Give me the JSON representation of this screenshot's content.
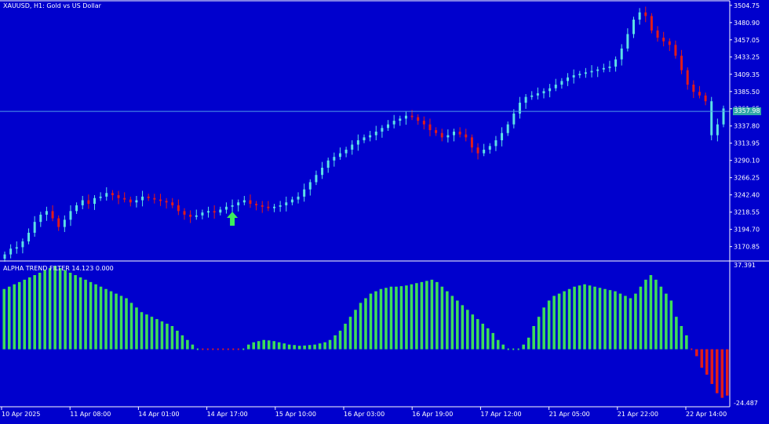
{
  "window": {
    "title": "XAUUSD, H1:  Gold vs US Dollar",
    "current_price": "3357.98"
  },
  "indicator": {
    "title": "ALPHA TREND FILTER 14.123 0.000",
    "max_label": "37.391",
    "min_label": "-24.487"
  },
  "colors": {
    "background": "#0000CD",
    "up_candle": "#5CE0E6",
    "down_candle": "#E01B1B",
    "positive_bar": "#3CDD5A",
    "negative_bar": "#E01B1B",
    "arrow": "#3CF05A",
    "price_line": "#4F9BE8"
  },
  "signal": {
    "type": "buy-arrow",
    "icon": "green-up-arrow-icon",
    "time_index": 38
  },
  "chart_data": [
    {
      "type": "candlestick",
      "title": "XAUUSD, H1:  Gold vs US Dollar",
      "ylim": [
        3152,
        3510
      ],
      "yticks": [
        "3504.75",
        "3480.90",
        "3457.05",
        "3433.25",
        "3409.35",
        "3385.50",
        "3361.65",
        "3337.80",
        "3313.95",
        "3290.10",
        "3266.25",
        "3242.40",
        "3218.55",
        "3194.70",
        "3170.85"
      ],
      "xticks": [
        "10 Apr 2025",
        "11 Apr 08:00",
        "14 Apr 01:00",
        "14 Apr 17:00",
        "15 Apr 10:00",
        "16 Apr 03:00",
        "16 Apr 19:00",
        "17 Apr 12:00",
        "21 Apr 05:00",
        "21 Apr 22:00",
        "22 Apr 14:00"
      ],
      "current_price": 3357.98,
      "close": [
        3160,
        3168,
        3170,
        3178,
        3190,
        3205,
        3215,
        3220,
        3210,
        3198,
        3208,
        3220,
        3228,
        3235,
        3230,
        3238,
        3240,
        3245,
        3242,
        3238,
        3236,
        3232,
        3235,
        3240,
        3238,
        3236,
        3234,
        3232,
        3228,
        3220,
        3215,
        3212,
        3214,
        3218,
        3220,
        3218,
        3222,
        3226,
        3228,
        3232,
        3235,
        3230,
        3228,
        3226,
        3224,
        3226,
        3228,
        3232,
        3236,
        3240,
        3250,
        3260,
        3270,
        3280,
        3290,
        3295,
        3300,
        3305,
        3312,
        3318,
        3322,
        3325,
        3330,
        3335,
        3340,
        3345,
        3348,
        3352,
        3350,
        3345,
        3340,
        3332,
        3328,
        3322,
        3325,
        3330,
        3326,
        3322,
        3308,
        3300,
        3305,
        3310,
        3318,
        3328,
        3340,
        3355,
        3370,
        3378,
        3380,
        3383,
        3386,
        3390,
        3395,
        3400,
        3405,
        3408,
        3410,
        3412,
        3414,
        3416,
        3418,
        3420,
        3430,
        3445,
        3465,
        3485,
        3495,
        3490,
        3470,
        3460,
        3455,
        3450,
        3435,
        3415,
        3395,
        3385,
        3380,
        3372,
        3325,
        3340,
        3362
      ],
      "up": [
        true,
        true,
        true,
        true,
        true,
        true,
        true,
        true,
        false,
        false,
        true,
        true,
        true,
        true,
        false,
        true,
        true,
        true,
        false,
        false,
        false,
        false,
        true,
        true,
        false,
        false,
        false,
        false,
        false,
        false,
        false,
        false,
        true,
        true,
        true,
        false,
        true,
        true,
        true,
        true,
        true,
        false,
        false,
        false,
        false,
        true,
        true,
        true,
        true,
        true,
        true,
        true,
        true,
        true,
        true,
        true,
        true,
        true,
        true,
        true,
        true,
        true,
        true,
        true,
        true,
        true,
        true,
        true,
        false,
        false,
        false,
        false,
        false,
        false,
        true,
        true,
        false,
        false,
        false,
        false,
        true,
        true,
        true,
        true,
        true,
        true,
        true,
        true,
        true,
        true,
        true,
        true,
        true,
        true,
        true,
        true,
        true,
        true,
        true,
        true,
        true,
        true,
        true,
        true,
        true,
        true,
        true,
        false,
        false,
        false,
        false,
        false,
        false,
        false,
        false,
        false,
        false,
        false,
        true,
        true,
        true
      ]
    },
    {
      "type": "bar",
      "title": "ALPHA TREND FILTER 14.123 0.000",
      "ylim": [
        -24.487,
        37.391
      ],
      "values": [
        26,
        27,
        28,
        29,
        30,
        31,
        32,
        33,
        34,
        35,
        36,
        35,
        34,
        33,
        32,
        31,
        30,
        29,
        28,
        27,
        26,
        25,
        24,
        23,
        22,
        20,
        18,
        16,
        15,
        14,
        13,
        12,
        11,
        10,
        8,
        6,
        4,
        2,
        0,
        -0.5,
        -0.7,
        -0.8,
        -0.9,
        -0.9,
        -0.8,
        -0.7,
        -0.5,
        1,
        2,
        3,
        3.5,
        4,
        3.8,
        3.5,
        3,
        2.5,
        2,
        1.8,
        1.5,
        1.6,
        1.8,
        2,
        2.5,
        3,
        4,
        6,
        8,
        11,
        14,
        17,
        20,
        22,
        24,
        25,
        26,
        26.5,
        27,
        27,
        27.2,
        27.5,
        28,
        28.5,
        29,
        29.5,
        30,
        29,
        27,
        25,
        23,
        21,
        19,
        17,
        15,
        13,
        11,
        9,
        7,
        4,
        2,
        1,
        0.8,
        1,
        2,
        5,
        10,
        14,
        18,
        21,
        23,
        24,
        25,
        26,
        27,
        27.5,
        28,
        27.5,
        27,
        26.5,
        26,
        25.5,
        25,
        24,
        23,
        22,
        24,
        27,
        30,
        32,
        30,
        27,
        24,
        21,
        14,
        10,
        6,
        -0.5,
        -3,
        -8,
        -11,
        -15,
        -19,
        -21,
        -20
      ]
    }
  ]
}
